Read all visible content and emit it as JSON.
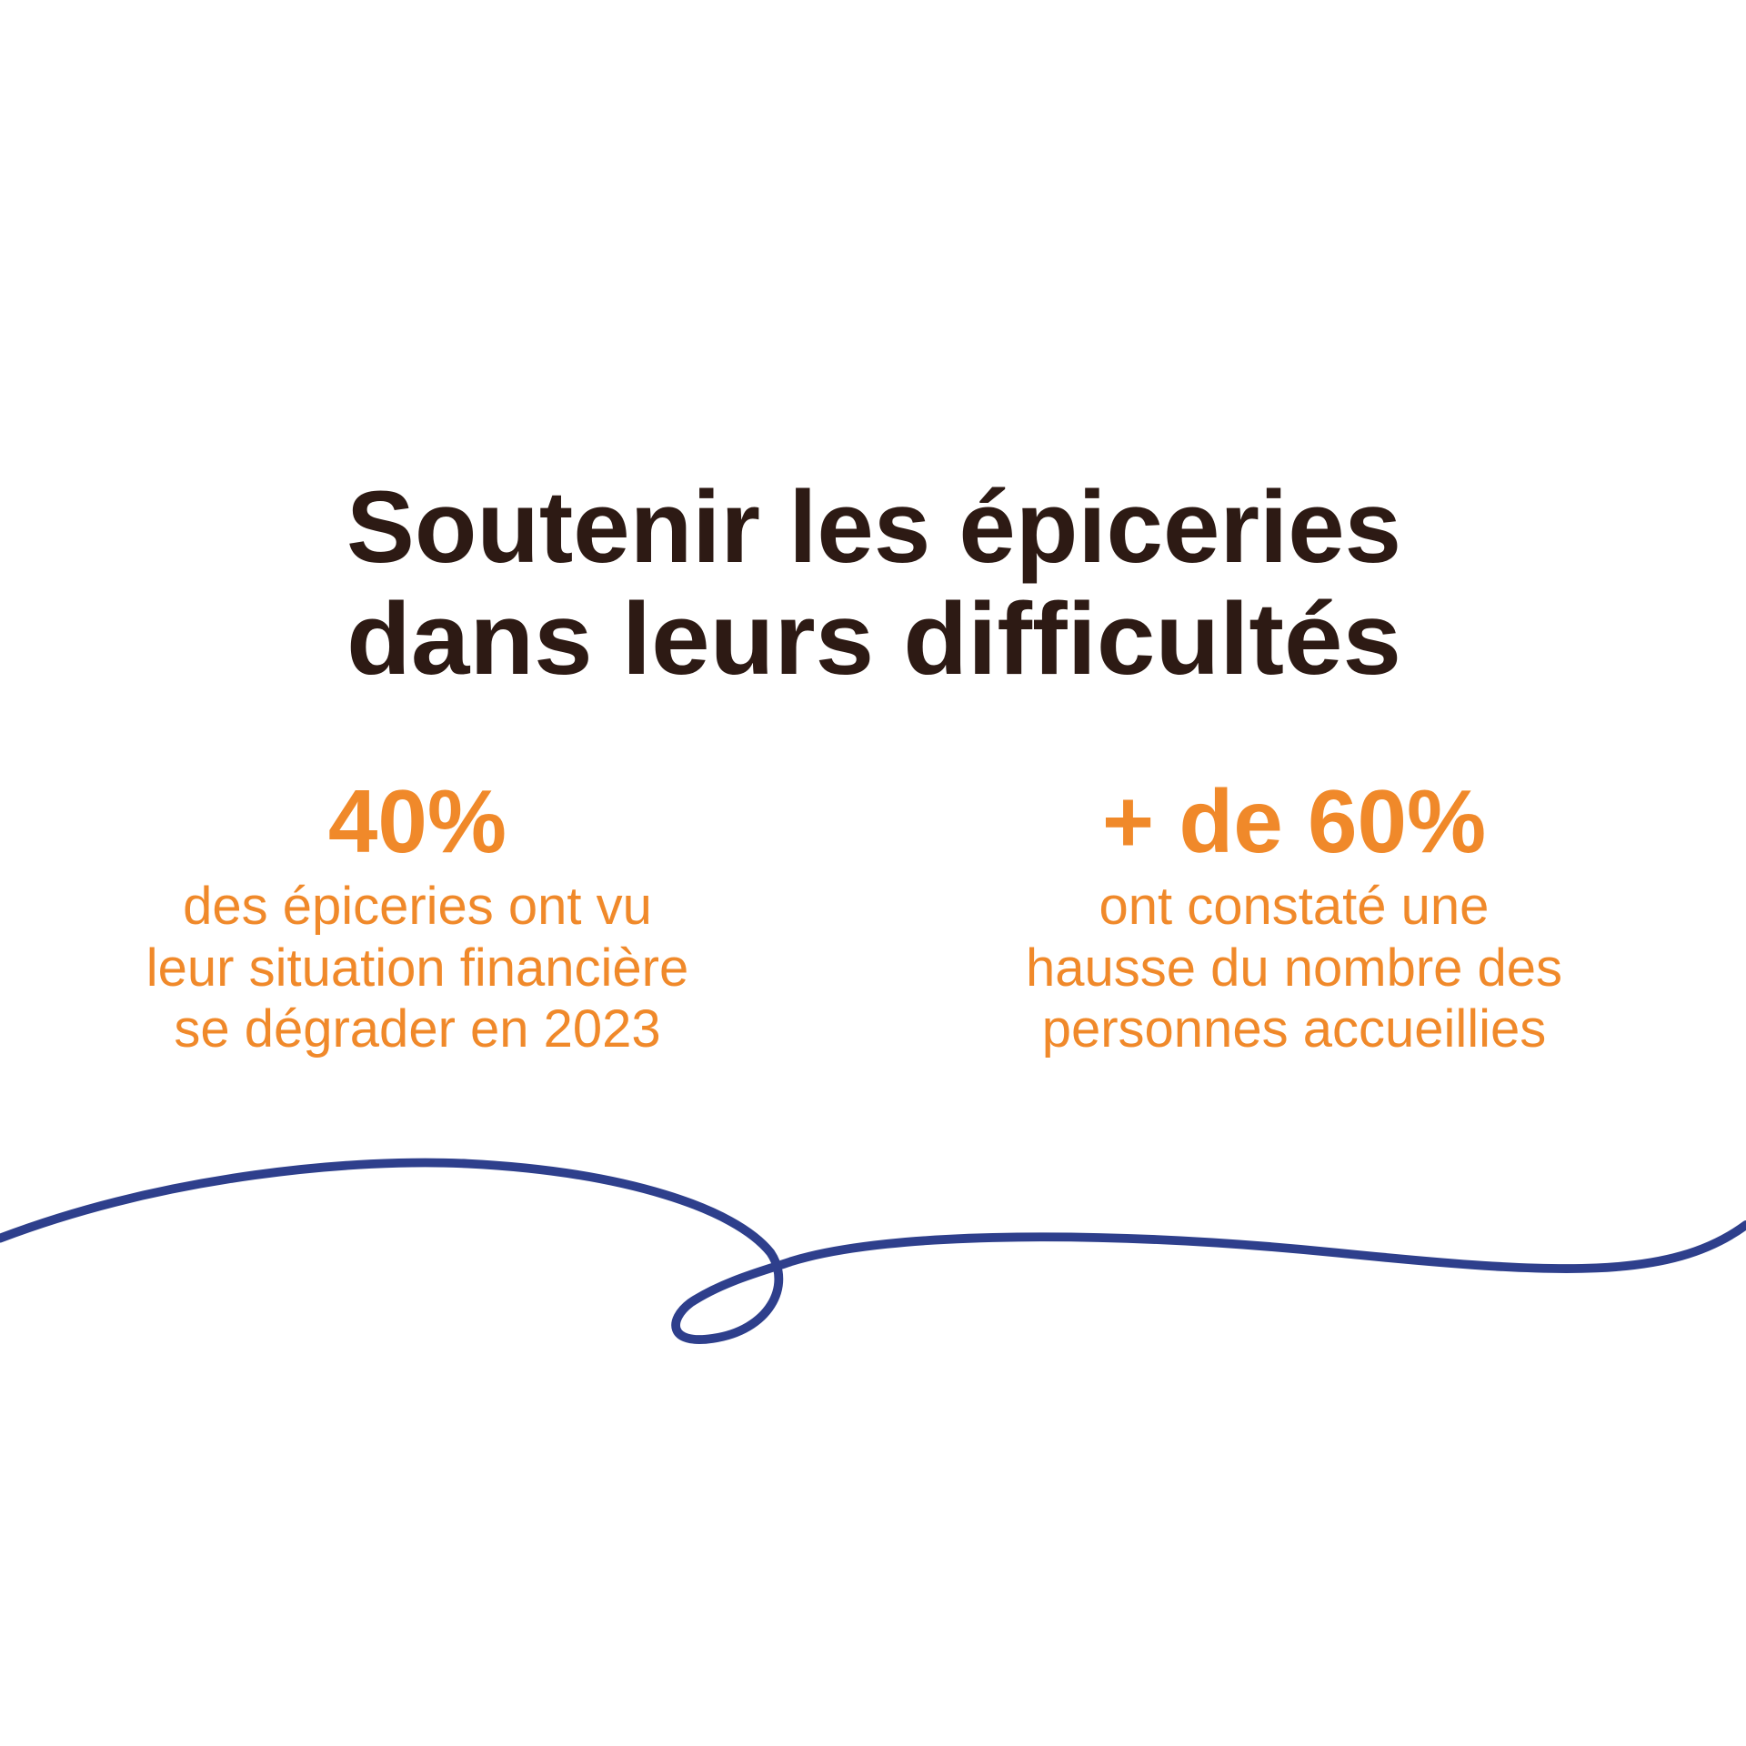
{
  "title": {
    "lines": [
      "Soutenir les épiceries",
      "dans leurs difficultés"
    ]
  },
  "stats": [
    {
      "figure": "40%",
      "description": [
        "des épiceries ont vu",
        "leur situation financière",
        "se dégrader en 2023"
      ]
    },
    {
      "figure": "+ de 60%",
      "description": [
        "ont constaté une",
        "hausse du nombre des",
        "personnes accueillies"
      ]
    }
  ]
}
